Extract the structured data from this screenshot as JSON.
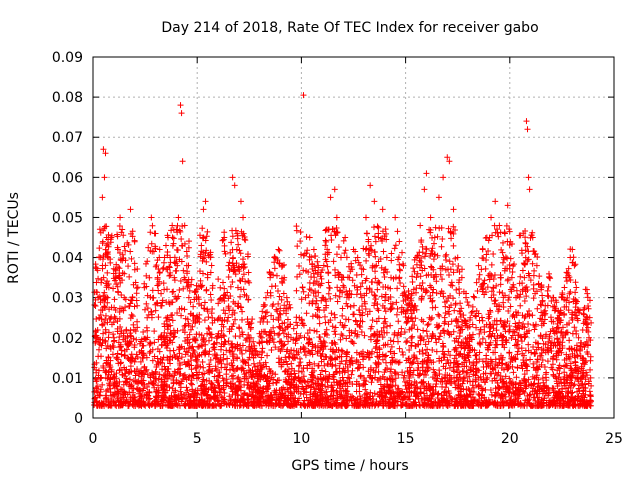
{
  "chart_data": {
    "type": "scatter",
    "title": "Day 214 of 2018, Rate Of TEC Index for receiver gabo",
    "xlabel": "GPS time / hours",
    "ylabel": "ROTI / TECUs",
    "xlim": [
      0,
      25
    ],
    "ylim": [
      0,
      0.09
    ],
    "xticks": [
      "0",
      "5",
      "10",
      "15",
      "20",
      "25"
    ],
    "yticks": [
      "0",
      "0.01",
      "0.02",
      "0.03",
      "0.04",
      "0.05",
      "0.06",
      "0.07",
      "0.08",
      "0.09"
    ],
    "grid": true,
    "marker": "+",
    "color": "#ff0000",
    "series": [
      {
        "values_note": "",
        "points": [
          [
            0.1,
            0.005
          ],
          [
            0.15,
            0.012
          ],
          [
            0.2,
            0.02
          ],
          [
            0.25,
            0.03
          ],
          [
            0.3,
            0.025
          ],
          [
            0.35,
            0.04
          ],
          [
            0.4,
            0.01
          ],
          [
            0.45,
            0.055
          ],
          [
            0.5,
            0.067
          ],
          [
            0.55,
            0.06
          ],
          [
            0.6,
            0.066
          ],
          [
            0.65,
            0.045
          ],
          [
            0.7,
            0.03
          ],
          [
            0.75,
            0.015
          ],
          [
            0.8,
            0.008
          ],
          [
            0.9,
            0.012
          ],
          [
            1.0,
            0.02
          ],
          [
            1.1,
            0.035
          ],
          [
            1.2,
            0.042
          ],
          [
            1.3,
            0.05
          ],
          [
            1.4,
            0.047
          ],
          [
            1.5,
            0.03
          ],
          [
            1.6,
            0.022
          ],
          [
            1.7,
            0.018
          ],
          [
            1.8,
            0.052
          ],
          [
            1.9,
            0.03
          ],
          [
            2.0,
            0.014
          ],
          [
            2.1,
            0.009
          ],
          [
            2.2,
            0.011
          ],
          [
            2.4,
            0.015
          ],
          [
            2.6,
            0.025
          ],
          [
            2.8,
            0.05
          ],
          [
            3.0,
            0.046
          ],
          [
            3.1,
            0.035
          ],
          [
            3.2,
            0.042
          ],
          [
            3.3,
            0.028
          ],
          [
            3.4,
            0.02
          ],
          [
            3.5,
            0.018
          ],
          [
            3.6,
            0.045
          ],
          [
            3.7,
            0.04
          ],
          [
            3.8,
            0.048
          ],
          [
            3.9,
            0.035
          ],
          [
            4.0,
            0.047
          ],
          [
            4.1,
            0.05
          ],
          [
            4.2,
            0.078
          ],
          [
            4.25,
            0.076
          ],
          [
            4.3,
            0.064
          ],
          [
            4.4,
            0.048
          ],
          [
            4.5,
            0.038
          ],
          [
            4.6,
            0.03
          ],
          [
            4.7,
            0.022
          ],
          [
            4.8,
            0.016
          ],
          [
            5.0,
            0.025
          ],
          [
            5.2,
            0.043
          ],
          [
            5.3,
            0.052
          ],
          [
            5.4,
            0.054
          ],
          [
            5.5,
            0.035
          ],
          [
            5.7,
            0.02
          ],
          [
            5.9,
            0.015
          ],
          [
            6.1,
            0.025
          ],
          [
            6.3,
            0.045
          ],
          [
            6.5,
            0.038
          ],
          [
            6.7,
            0.06
          ],
          [
            6.8,
            0.058
          ],
          [
            6.9,
            0.042
          ],
          [
            7.1,
            0.054
          ],
          [
            7.2,
            0.05
          ],
          [
            7.3,
            0.034
          ],
          [
            7.5,
            0.02
          ],
          [
            7.7,
            0.015
          ],
          [
            7.9,
            0.012
          ],
          [
            8.1,
            0.02
          ],
          [
            8.3,
            0.03
          ],
          [
            8.5,
            0.035
          ],
          [
            8.7,
            0.04
          ],
          [
            8.9,
            0.042
          ],
          [
            9.1,
            0.038
          ],
          [
            9.3,
            0.03
          ],
          [
            9.5,
            0.02
          ],
          [
            9.7,
            0.015
          ],
          [
            9.9,
            0.025
          ],
          [
            10.1,
            0.0805
          ],
          [
            10.2,
            0.03
          ],
          [
            10.4,
            0.045
          ],
          [
            10.6,
            0.042
          ],
          [
            10.8,
            0.038
          ],
          [
            11.0,
            0.03
          ],
          [
            11.2,
            0.047
          ],
          [
            11.4,
            0.055
          ],
          [
            11.6,
            0.057
          ],
          [
            11.7,
            0.05
          ],
          [
            11.9,
            0.04
          ],
          [
            12.1,
            0.045
          ],
          [
            12.3,
            0.035
          ],
          [
            12.5,
            0.042
          ],
          [
            12.7,
            0.04
          ],
          [
            12.9,
            0.03
          ],
          [
            13.1,
            0.05
          ],
          [
            13.3,
            0.058
          ],
          [
            13.5,
            0.054
          ],
          [
            13.7,
            0.045
          ],
          [
            13.9,
            0.052
          ],
          [
            14.1,
            0.04
          ],
          [
            14.3,
            0.035
          ],
          [
            14.5,
            0.05
          ],
          [
            14.7,
            0.044
          ],
          [
            14.9,
            0.038
          ],
          [
            15.1,
            0.03
          ],
          [
            15.3,
            0.025
          ],
          [
            15.5,
            0.04
          ],
          [
            15.7,
            0.048
          ],
          [
            15.9,
            0.057
          ],
          [
            16.0,
            0.061
          ],
          [
            16.2,
            0.05
          ],
          [
            16.4,
            0.045
          ],
          [
            16.6,
            0.055
          ],
          [
            16.8,
            0.06
          ],
          [
            17.0,
            0.065
          ],
          [
            17.1,
            0.064
          ],
          [
            17.3,
            0.052
          ],
          [
            17.5,
            0.04
          ],
          [
            17.7,
            0.035
          ],
          [
            17.9,
            0.03
          ],
          [
            18.1,
            0.025
          ],
          [
            18.3,
            0.03
          ],
          [
            18.5,
            0.038
          ],
          [
            18.7,
            0.042
          ],
          [
            18.9,
            0.045
          ],
          [
            19.1,
            0.05
          ],
          [
            19.3,
            0.054
          ],
          [
            19.5,
            0.048
          ],
          [
            19.7,
            0.04
          ],
          [
            19.9,
            0.053
          ],
          [
            20.1,
            0.035
          ],
          [
            20.3,
            0.03
          ],
          [
            20.5,
            0.028
          ],
          [
            20.7,
            0.035
          ],
          [
            20.8,
            0.074
          ],
          [
            20.85,
            0.072
          ],
          [
            20.9,
            0.06
          ],
          [
            20.95,
            0.057
          ],
          [
            21.1,
            0.045
          ],
          [
            21.3,
            0.038
          ],
          [
            21.5,
            0.032
          ],
          [
            21.7,
            0.028
          ],
          [
            21.9,
            0.035
          ],
          [
            22.1,
            0.03
          ],
          [
            22.3,
            0.025
          ],
          [
            22.5,
            0.03
          ],
          [
            22.7,
            0.035
          ],
          [
            22.9,
            0.04
          ],
          [
            23.0,
            0.042
          ],
          [
            23.1,
            0.038
          ],
          [
            23.3,
            0.02
          ],
          [
            23.5,
            0.015
          ],
          [
            23.7,
            0.032
          ],
          [
            23.8,
            0.02
          ],
          [
            23.85,
            0.012
          ],
          [
            23.9,
            0.008
          ]
        ]
      }
    ]
  }
}
